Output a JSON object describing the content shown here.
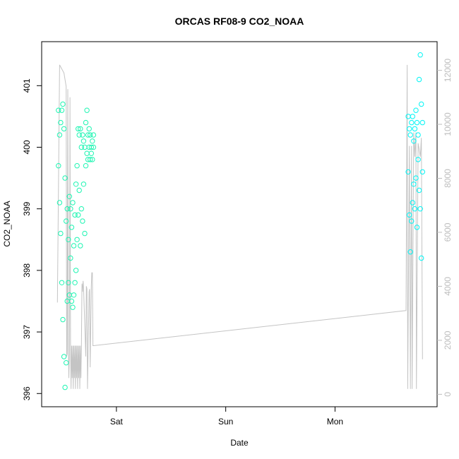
{
  "chart_data": {
    "type": "scatter",
    "title": "ORCAS RF08-9 CO2_NOAA",
    "xlabel": "Date",
    "ylabel": "CO2_NOAA",
    "x_unit": "days",
    "x_ticks": [
      {
        "x": 1,
        "label": "Sat"
      },
      {
        "x": 2,
        "label": "Sun"
      },
      {
        "x": 3,
        "label": "Mon"
      }
    ],
    "xlim": [
      0.4,
      3.85
    ],
    "ylim": [
      395.9,
      401.6
    ],
    "y_ticks": [
      396,
      397,
      398,
      399,
      400,
      401
    ],
    "y2lim": [
      -200,
      12800
    ],
    "y2_ticks": [
      0,
      2000,
      4000,
      6000,
      8000,
      10000,
      12000
    ],
    "colors": {
      "scatter_early": "#1df5b2",
      "scatter_late": "#00f5f5",
      "altitude_line": "#c4c4c4",
      "axis": "#000000",
      "right_axis": "#bdbdbd"
    },
    "altitude_series": {
      "name": "altitude",
      "x": [
        0.46,
        0.48,
        0.52,
        0.54,
        0.545,
        0.55,
        0.555,
        0.56,
        0.565,
        0.57,
        0.575,
        0.58,
        0.585,
        0.59,
        0.595,
        0.6,
        0.605,
        0.61,
        0.615,
        0.62,
        0.625,
        0.63,
        0.635,
        0.64,
        0.645,
        0.65,
        0.655,
        0.66,
        0.665,
        0.67,
        0.675,
        0.68,
        0.685,
        0.69,
        0.695,
        0.7,
        0.72,
        0.725,
        0.73,
        0.735,
        0.75,
        0.755,
        0.76,
        0.77,
        0.775,
        0.78,
        0.785,
        0.79,
        3.65,
        3.66,
        3.665,
        3.68,
        3.69,
        3.7,
        3.705,
        3.72,
        3.73,
        3.74,
        3.745,
        3.76,
        3.78,
        3.79,
        3.8
      ],
      "y": [
        3400,
        12200,
        11900,
        11400,
        1400,
        1500,
        11300,
        1800,
        600,
        1500,
        11000,
        1800,
        200,
        1800,
        600,
        1800,
        200,
        1800,
        600,
        1800,
        200,
        1800,
        600,
        1800,
        200,
        1800,
        600,
        1800,
        200,
        1800,
        600,
        1800,
        4100,
        3800,
        4200,
        3900,
        1400,
        4000,
        3900,
        200,
        3800,
        3900,
        1000,
        4000,
        4500,
        4500,
        1800,
        1800,
        3100,
        12200,
        200,
        9200,
        200,
        9200,
        200,
        9700,
        8800,
        9700,
        200,
        9300,
        8800,
        9500,
        1300
      ]
    },
    "series": [
      {
        "x": [
          0.47,
          0.47,
          0.48,
          0.48,
          0.49,
          0.49,
          0.5,
          0.5,
          0.51,
          0.51,
          0.52,
          0.52,
          0.53,
          0.53,
          0.54,
          0.54,
          0.55,
          0.55,
          0.56,
          0.56,
          0.57,
          0.57,
          0.58,
          0.58,
          0.59,
          0.59,
          0.6,
          0.6,
          0.61,
          0.61,
          0.62,
          0.62,
          0.63,
          0.63,
          0.64,
          0.64,
          0.65,
          0.65,
          0.66,
          0.66,
          0.67,
          0.67,
          0.68,
          0.68,
          0.69,
          0.69,
          0.7,
          0.7,
          0.71,
          0.71,
          0.72,
          0.72,
          0.73,
          0.73,
          0.74,
          0.74,
          0.75,
          0.75,
          0.76,
          0.76,
          0.77,
          0.77,
          0.78,
          0.78,
          0.79,
          0.79
        ],
        "y": [
          400.6,
          399.7,
          400.2,
          399.1,
          400.4,
          398.6,
          400.6,
          397.8,
          400.7,
          397.2,
          400.3,
          396.6,
          399.5,
          396.1,
          398.8,
          396.5,
          399.0,
          397.5,
          398.5,
          397.8,
          399.2,
          397.6,
          399.0,
          398.2,
          398.7,
          397.5,
          399.1,
          397.4,
          398.4,
          397.6,
          398.9,
          397.8,
          399.4,
          398.0,
          399.7,
          398.5,
          400.3,
          398.9,
          400.2,
          399.3,
          400.3,
          398.4,
          400.0,
          399.0,
          400.2,
          398.8,
          400.1,
          399.4,
          400.0,
          398.6,
          400.4,
          399.7,
          400.6,
          399.9,
          400.2,
          399.8,
          400.3,
          400.0,
          400.2,
          399.8,
          400.0,
          399.9,
          400.1,
          399.8,
          400.0,
          400.2
        ]
      },
      {
        "x": [
          3.67,
          3.67,
          3.68,
          3.68,
          3.69,
          3.69,
          3.7,
          3.7,
          3.71,
          3.71,
          3.72,
          3.72,
          3.73,
          3.73,
          3.74,
          3.74,
          3.75,
          3.75,
          3.76,
          3.76,
          3.77,
          3.77,
          3.78,
          3.78,
          3.79,
          3.79,
          3.8,
          3.8
        ],
        "y": [
          400.5,
          399.6,
          400.3,
          398.9,
          400.2,
          398.3,
          400.4,
          398.8,
          400.5,
          399.1,
          400.1,
          399.4,
          400.3,
          399.0,
          400.6,
          399.5,
          400.4,
          398.7,
          400.2,
          399.8,
          401.1,
          399.3,
          401.5,
          399.0,
          400.7,
          398.2,
          400.4,
          399.6
        ]
      }
    ]
  }
}
